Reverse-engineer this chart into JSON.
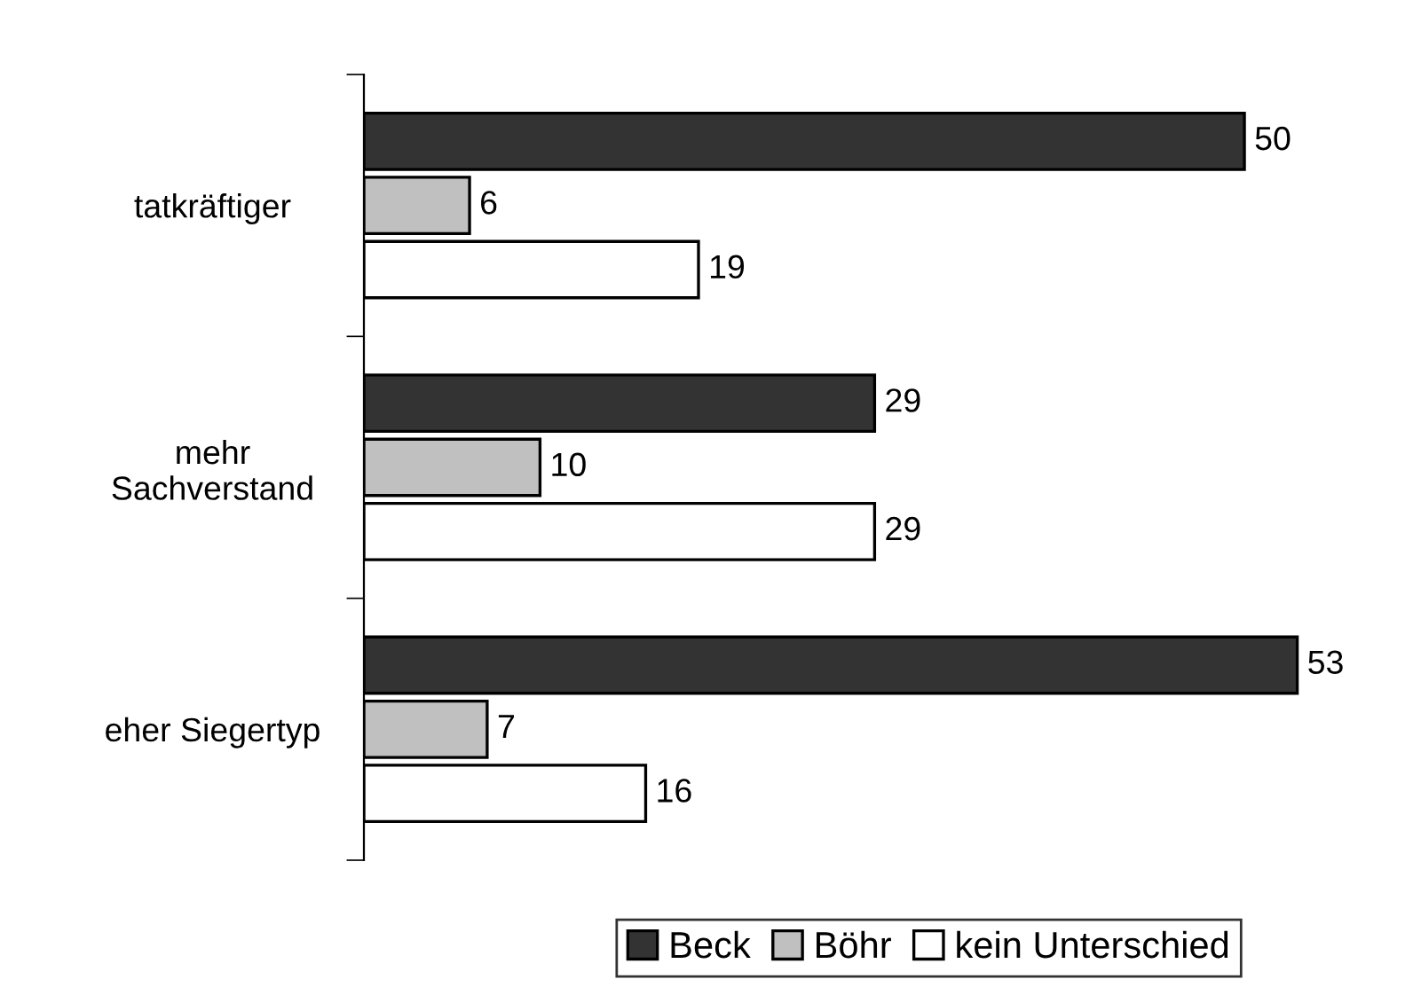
{
  "chart_data": {
    "type": "bar",
    "orientation": "horizontal",
    "categories": [
      "tatkräftiger",
      "mehr\nSachverstand",
      "eher Siegertyp"
    ],
    "series": [
      {
        "name": "Beck",
        "color": "#333333",
        "values": [
          50,
          29,
          53
        ]
      },
      {
        "name": "Böhr",
        "color": "#c0c0c0",
        "values": [
          6,
          10,
          7
        ]
      },
      {
        "name": "kein Unterschied",
        "color": "#ffffff",
        "values": [
          19,
          29,
          16
        ]
      }
    ],
    "data_labels": true,
    "grid": false,
    "legend": "bottom"
  }
}
